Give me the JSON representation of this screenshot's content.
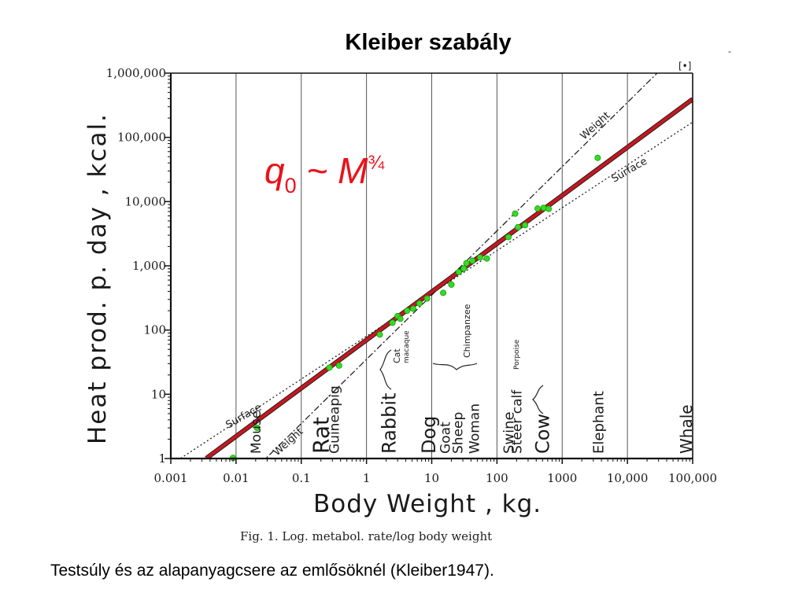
{
  "slide": {
    "title": "Kleiber szabály",
    "corner_mark": "-",
    "caption": "Testsúly és az alapanyagcsere az emlősöknél (Kleiber1947).",
    "formula": {
      "q": "q",
      "sub": "0",
      "tilde": " ~ ",
      "M": "M",
      "exp": "¾"
    }
  },
  "chart_data": {
    "type": "scatter",
    "x_scale": "log",
    "y_scale": "log",
    "xlim": [
      0.001,
      100000
    ],
    "ylim": [
      1,
      1000000
    ],
    "xlabel": "Body Weight , kg.",
    "ylabel": "Heat prod. p. day , kcal.",
    "x_ticks": [
      {
        "value": 0.001,
        "label": "0.001"
      },
      {
        "value": 0.01,
        "label": "0.01"
      },
      {
        "value": 0.1,
        "label": "0.1"
      },
      {
        "value": 1,
        "label": "1"
      },
      {
        "value": 10,
        "label": "10"
      },
      {
        "value": 100,
        "label": "100"
      },
      {
        "value": 1000,
        "label": "1000"
      },
      {
        "value": 10000,
        "label": "10,000"
      },
      {
        "value": 100000,
        "label": "100,000"
      }
    ],
    "y_ticks": [
      {
        "value": 1,
        "label": "1"
      },
      {
        "value": 10,
        "label": "10"
      },
      {
        "value": 100,
        "label": "100"
      },
      {
        "value": 1000,
        "label": "1,000"
      },
      {
        "value": 10000,
        "label": "10,000"
      },
      {
        "value": 100000,
        "label": "100,000"
      },
      {
        "value": 1000000,
        "label": "1,000,000"
      }
    ],
    "grid": "vertical lines at decades",
    "legend": "top-right",
    "legend_marker": "[•]",
    "fit_line": {
      "label": "q0 ~ M^3/4",
      "slope": 0.75,
      "coef": 70,
      "color": "#c8161d"
    },
    "reference_lines": [
      {
        "label": "Weight",
        "slope": 1,
        "coef": 35
      },
      {
        "label": "Surface",
        "slope": 0.667,
        "coef": 80
      }
    ],
    "points": [
      {
        "x": 0.009,
        "y": 1.02
      },
      {
        "x": 0.021,
        "y": 3.0
      },
      {
        "x": 0.27,
        "y": 26
      },
      {
        "x": 0.38,
        "y": 28
      },
      {
        "x": 1.6,
        "y": 85
      },
      {
        "x": 2.5,
        "y": 130
      },
      {
        "x": 3.0,
        "y": 165
      },
      {
        "x": 3.3,
        "y": 150
      },
      {
        "x": 4.2,
        "y": 200
      },
      {
        "x": 5.2,
        "y": 215
      },
      {
        "x": 6.5,
        "y": 260
      },
      {
        "x": 8.5,
        "y": 310
      },
      {
        "x": 15,
        "y": 380
      },
      {
        "x": 20,
        "y": 510
      },
      {
        "x": 26,
        "y": 800
      },
      {
        "x": 31,
        "y": 910
      },
      {
        "x": 34,
        "y": 1100
      },
      {
        "x": 42,
        "y": 1200
      },
      {
        "x": 55,
        "y": 1350
      },
      {
        "x": 70,
        "y": 1300
      },
      {
        "x": 150,
        "y": 2800
      },
      {
        "x": 190,
        "y": 6500
      },
      {
        "x": 210,
        "y": 4000
      },
      {
        "x": 270,
        "y": 4300
      },
      {
        "x": 420,
        "y": 7800
      },
      {
        "x": 520,
        "y": 8000
      },
      {
        "x": 620,
        "y": 7700
      },
      {
        "x": 3500,
        "y": 48000
      }
    ],
    "series_labels": [
      {
        "text": "Mouse",
        "x": 0.02
      },
      {
        "text": "Rat",
        "x": 0.2
      },
      {
        "text": "Guineapig",
        "x": 0.32
      },
      {
        "text": "Rabbit",
        "x": 2.2
      },
      {
        "text": "Dog",
        "x": 9
      },
      {
        "text": "Goat",
        "x": 16
      },
      {
        "text": "Sheep",
        "x": 25
      },
      {
        "text": "Woman",
        "x": 45
      },
      {
        "text": "Swine",
        "x": 150
      },
      {
        "text": "Steer calf",
        "x": 200
      },
      {
        "text": "Cow",
        "x": 500
      },
      {
        "text": "Elephant",
        "x": 3600
      },
      {
        "text": "Whale",
        "x": 80000
      }
    ],
    "small_annotations": [
      {
        "text": "Cat"
      },
      {
        "text": "macaque"
      },
      {
        "text": "Chimpanzee"
      },
      {
        "text": "Porpoise"
      }
    ],
    "figure_caption": "Fig. 1.   Log.   metabol. rate/log body weight"
  }
}
